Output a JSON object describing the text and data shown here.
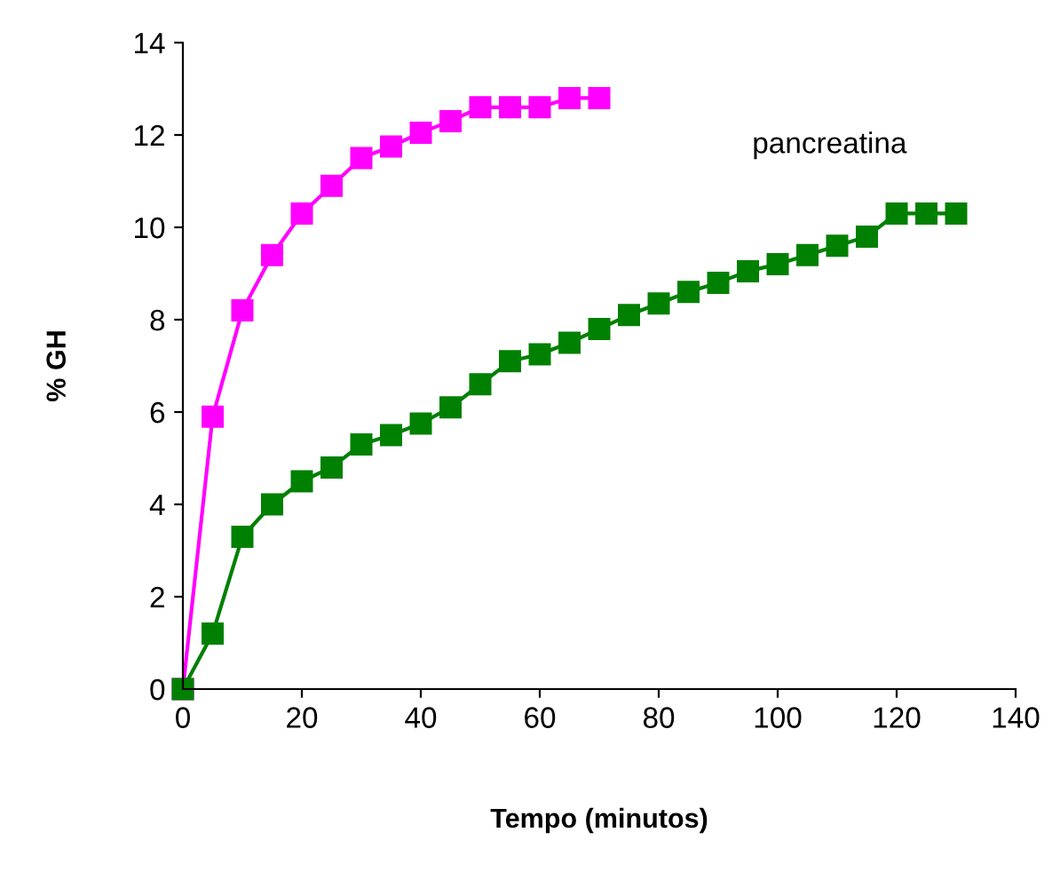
{
  "chart_data": {
    "type": "line",
    "xlabel": "Tempo (minutos)",
    "ylabel": "% GH",
    "xlim": [
      0,
      140
    ],
    "xticks": [
      0,
      20,
      40,
      60,
      80,
      100,
      120,
      140
    ],
    "ylim": [
      0,
      14
    ],
    "yticks": [
      0,
      2,
      4,
      6,
      8,
      10,
      12,
      14
    ],
    "grid": false,
    "legend": false,
    "marker": "square",
    "line_style": "solid",
    "series": [
      {
        "color": "#ff00ff",
        "x": [
          0,
          5,
          10,
          15,
          20,
          25,
          30,
          35,
          40,
          45,
          50,
          55,
          60,
          65,
          70
        ],
        "values": [
          0,
          5.9,
          8.2,
          9.4,
          10.3,
          10.9,
          11.5,
          11.75,
          12.05,
          12.3,
          12.6,
          12.6,
          12.6,
          12.8,
          12.8
        ]
      },
      {
        "name": "pancreatina",
        "color": "#008000",
        "x": [
          0,
          5,
          10,
          15,
          20,
          25,
          30,
          35,
          40,
          45,
          50,
          55,
          60,
          65,
          70,
          75,
          80,
          85,
          90,
          95,
          100,
          105,
          110,
          115,
          120,
          125,
          130
        ],
        "values": [
          0,
          1.2,
          3.3,
          4.0,
          4.5,
          4.8,
          5.3,
          5.5,
          5.75,
          6.1,
          6.6,
          7.1,
          7.25,
          7.5,
          7.8,
          8.1,
          8.35,
          8.6,
          8.8,
          9.05,
          9.2,
          9.4,
          9.6,
          9.8,
          10.3,
          10.3,
          10.3
        ]
      }
    ]
  }
}
